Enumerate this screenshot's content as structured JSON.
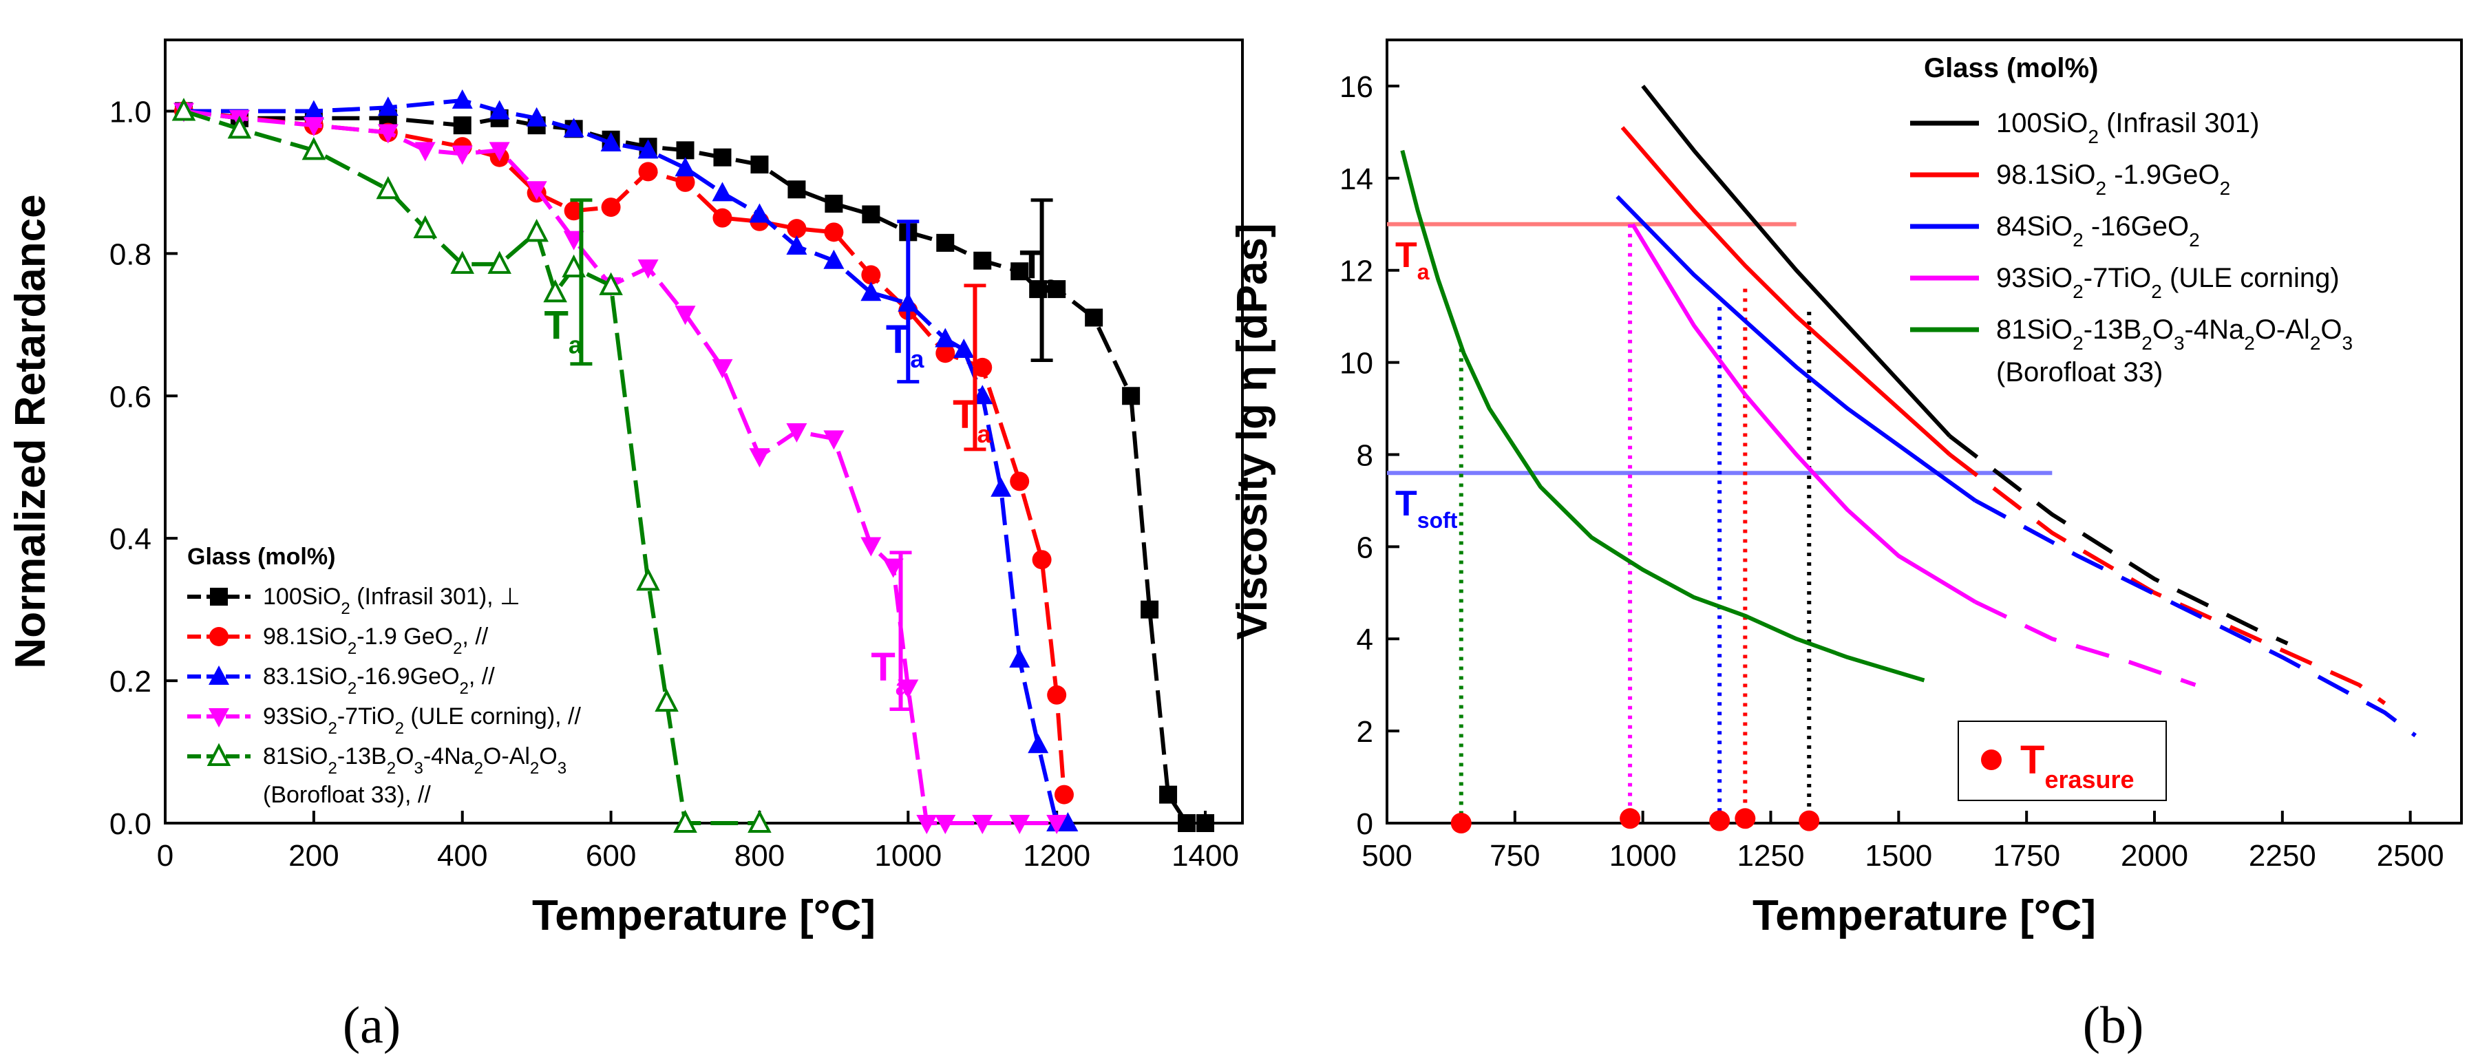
{
  "chart_data": [
    {
      "type": "line",
      "panel": "(a)",
      "xlabel": "Temperature [°C]",
      "ylabel": "Normalized Retardance",
      "xlim": [
        0,
        1450
      ],
      "ylim": [
        0,
        1.1
      ],
      "xticks": [
        "0",
        "200",
        "400",
        "600",
        "800",
        "1000",
        "1200",
        "1400"
      ],
      "yticks": [
        "0.0",
        "0.2",
        "0.4",
        "0.6",
        "0.8",
        "1.0"
      ],
      "legend_title": "Glass (mol%)",
      "legend_position": "bottom-left",
      "series": [
        {
          "name": "100SiO2 (Infrasil 301), ⊥",
          "color": "#000000",
          "marker": "square",
          "x": [
            25,
            100,
            200,
            300,
            400,
            450,
            500,
            550,
            600,
            650,
            700,
            750,
            800,
            850,
            900,
            950,
            1000,
            1050,
            1100,
            1150,
            1175,
            1200,
            1250,
            1300,
            1325,
            1350,
            1375,
            1400
          ],
          "y": [
            1.0,
            0.99,
            0.99,
            0.99,
            0.98,
            0.99,
            0.98,
            0.975,
            0.96,
            0.95,
            0.945,
            0.935,
            0.925,
            0.89,
            0.87,
            0.855,
            0.83,
            0.815,
            0.79,
            0.775,
            0.75,
            0.75,
            0.71,
            0.6,
            0.3,
            0.04,
            0.0,
            0.0
          ]
        },
        {
          "name": "98.1SiO2-1.9 GeO2, //",
          "color": "#ff0000",
          "marker": "circle",
          "x": [
            25,
            200,
            300,
            400,
            450,
            500,
            550,
            600,
            650,
            700,
            750,
            800,
            850,
            900,
            950,
            1000,
            1050,
            1100,
            1150,
            1180,
            1200,
            1210
          ],
          "y": [
            1.0,
            0.98,
            0.97,
            0.95,
            0.935,
            0.885,
            0.86,
            0.865,
            0.915,
            0.9,
            0.85,
            0.845,
            0.835,
            0.83,
            0.77,
            0.72,
            0.66,
            0.64,
            0.48,
            0.37,
            0.18,
            0.04
          ]
        },
        {
          "name": "83.1SiO2-16.9GeO2, //",
          "color": "#0000ff",
          "marker": "triangle-up",
          "x": [
            25,
            200,
            300,
            400,
            450,
            500,
            550,
            600,
            650,
            700,
            750,
            800,
            850,
            900,
            950,
            1000,
            1050,
            1075,
            1100,
            1125,
            1150,
            1175,
            1200,
            1215
          ],
          "y": [
            1.0,
            1.0,
            1.005,
            1.015,
            1.0,
            0.99,
            0.975,
            0.955,
            0.945,
            0.92,
            0.885,
            0.855,
            0.81,
            0.79,
            0.745,
            0.73,
            0.68,
            0.665,
            0.6,
            0.47,
            0.23,
            0.11,
            0.0,
            0.0
          ]
        },
        {
          "name": "93SiO2-7TiO2 (ULE corning), //",
          "color": "#ff00ff",
          "marker": "triangle-down",
          "x": [
            25,
            100,
            200,
            300,
            350,
            400,
            450,
            500,
            550,
            600,
            650,
            700,
            750,
            800,
            850,
            900,
            950,
            980,
            1000,
            1025,
            1050,
            1100,
            1150,
            1200
          ],
          "y": [
            1.0,
            0.99,
            0.98,
            0.97,
            0.945,
            0.94,
            0.945,
            0.89,
            0.82,
            0.755,
            0.78,
            0.715,
            0.64,
            0.515,
            0.55,
            0.54,
            0.39,
            0.36,
            0.19,
            0.0,
            0.0,
            0.0,
            0.0,
            0.0
          ]
        },
        {
          "name": "81SiO2-13B2O3-4Na2O-Al2O3 (Borofloat 33), //",
          "color": "#008000",
          "marker": "triangle-up-open",
          "x": [
            25,
            100,
            200,
            300,
            350,
            400,
            450,
            500,
            525,
            550,
            600,
            650,
            675,
            700,
            800
          ],
          "y": [
            1.0,
            0.975,
            0.945,
            0.89,
            0.835,
            0.785,
            0.785,
            0.83,
            0.745,
            0.78,
            0.755,
            0.34,
            0.17,
            0.0,
            0.0
          ]
        }
      ],
      "errorbars": [
        {
          "x": 560,
          "ylow": 0.645,
          "yhigh": 0.875,
          "color": "#008000"
        },
        {
          "x": 1000,
          "ylow": 0.62,
          "yhigh": 0.845,
          "color": "#0000ff"
        },
        {
          "x": 1090,
          "ylow": 0.525,
          "yhigh": 0.755,
          "color": "#ff0000"
        },
        {
          "x": 1180,
          "ylow": 0.65,
          "yhigh": 0.875,
          "color": "#000000"
        },
        {
          "x": 990,
          "ylow": 0.16,
          "yhigh": 0.38,
          "color": "#ff00ff"
        }
      ],
      "annotations": [
        {
          "text": "T",
          "sub": "a",
          "x": 510,
          "y": 0.68,
          "color": "#008000"
        },
        {
          "text": "T",
          "sub": "a",
          "x": 970,
          "y": 0.66,
          "color": "#0000ff"
        },
        {
          "text": "T",
          "sub": "a",
          "x": 1060,
          "y": 0.555,
          "color": "#ff0000"
        },
        {
          "text": "T",
          "sub": "a",
          "x": 1150,
          "y": 0.765,
          "color": "#000000"
        },
        {
          "text": "T",
          "sub": "a",
          "x": 950,
          "y": 0.2,
          "color": "#ff00ff"
        }
      ]
    },
    {
      "type": "line",
      "panel": "(b)",
      "xlabel": "Temperature [°C]",
      "ylabel": "Viscosity lg η [dPas]",
      "xlim": [
        500,
        2600
      ],
      "ylim": [
        0,
        17
      ],
      "xticks": [
        "500",
        "750",
        "1000",
        "1250",
        "1500",
        "1750",
        "2000",
        "2250",
        "2500"
      ],
      "yticks": [
        "0",
        "2",
        "4",
        "6",
        "8",
        "10",
        "12",
        "14",
        "16"
      ],
      "legend_title": "Glass (mol%)",
      "legend_position": "top-right",
      "series": [
        {
          "name": "100SiO2 (Infrasil 301)",
          "color": "#000000",
          "x": [
            1000,
            1100,
            1200,
            1300,
            1400,
            1500,
            1600
          ],
          "y": [
            16.0,
            14.6,
            13.3,
            12.0,
            10.8,
            9.6,
            8.4
          ],
          "dashed_x": [
            1600,
            1800,
            2000,
            2200,
            2260
          ],
          "dashed_y": [
            8.4,
            6.7,
            5.3,
            4.2,
            3.9
          ]
        },
        {
          "name": "98.1SiO2 -1.9GeO2",
          "color": "#ff0000",
          "x": [
            960,
            1100,
            1200,
            1300,
            1400,
            1500,
            1600
          ],
          "y": [
            15.1,
            13.3,
            12.1,
            11.0,
            10.0,
            9.0,
            8.0
          ],
          "dashed_x": [
            1600,
            1800,
            2000,
            2200,
            2400,
            2450
          ],
          "dashed_y": [
            8.0,
            6.3,
            5.0,
            4.0,
            3.0,
            2.6
          ]
        },
        {
          "name": "84SiO2 -16GeO2",
          "color": "#0000ff",
          "x": [
            950,
            1100,
            1200,
            1300,
            1400,
            1500,
            1650
          ],
          "y": [
            13.6,
            11.9,
            10.9,
            9.9,
            9.0,
            8.2,
            7.0
          ],
          "dashed_x": [
            1650,
            1850,
            2050,
            2250,
            2450,
            2510
          ],
          "dashed_y": [
            7.0,
            5.8,
            4.7,
            3.6,
            2.4,
            1.9
          ]
        },
        {
          "name": "93SiO2-7TiO2 (ULE corning)",
          "color": "#ff00ff",
          "x": [
            980,
            1100,
            1200,
            1300,
            1400,
            1500,
            1650
          ],
          "y": [
            13.0,
            10.8,
            9.3,
            8.0,
            6.8,
            5.8,
            4.8
          ],
          "dashed_x": [
            1650,
            1800,
            1950,
            2080
          ],
          "dashed_y": [
            4.8,
            4.0,
            3.5,
            3.0
          ]
        },
        {
          "name": "81SiO2-13B2O3-4Na2O-Al2O3 (Borofloat 33)",
          "color": "#008000",
          "x": [
            530,
            560,
            600,
            650,
            700,
            800,
            900,
            1000,
            1100,
            1200,
            1300,
            1400,
            1550
          ],
          "y": [
            14.6,
            13.3,
            11.8,
            10.2,
            9.0,
            7.3,
            6.2,
            5.5,
            4.9,
            4.5,
            4.0,
            3.6,
            3.1
          ]
        }
      ],
      "reference_lines": [
        {
          "label": "T",
          "sub": "a",
          "y": 13.0,
          "x_from": 500,
          "x_to": 1300,
          "color": "#ff7b7b"
        },
        {
          "label": "T",
          "sub": "soft",
          "y": 7.6,
          "x_from": 500,
          "x_to": 1800,
          "color": "#7b7bff"
        }
      ],
      "dotted_drops": [
        {
          "x": 645,
          "y": 10.3,
          "color": "#008000"
        },
        {
          "x": 975,
          "y": 13.0,
          "color": "#ff00ff"
        },
        {
          "x": 1150,
          "y": 11.2,
          "color": "#0000ff"
        },
        {
          "x": 1200,
          "y": 11.6,
          "color": "#ff0000"
        },
        {
          "x": 1325,
          "y": 11.1,
          "color": "#000000"
        }
      ],
      "erasure_points": {
        "label": "T",
        "sub": "erasure",
        "x": [
          645,
          975,
          1150,
          1200,
          1325
        ],
        "y": [
          0,
          0.1,
          0.05,
          0.1,
          0.05
        ],
        "color": "#ff0000"
      }
    }
  ]
}
